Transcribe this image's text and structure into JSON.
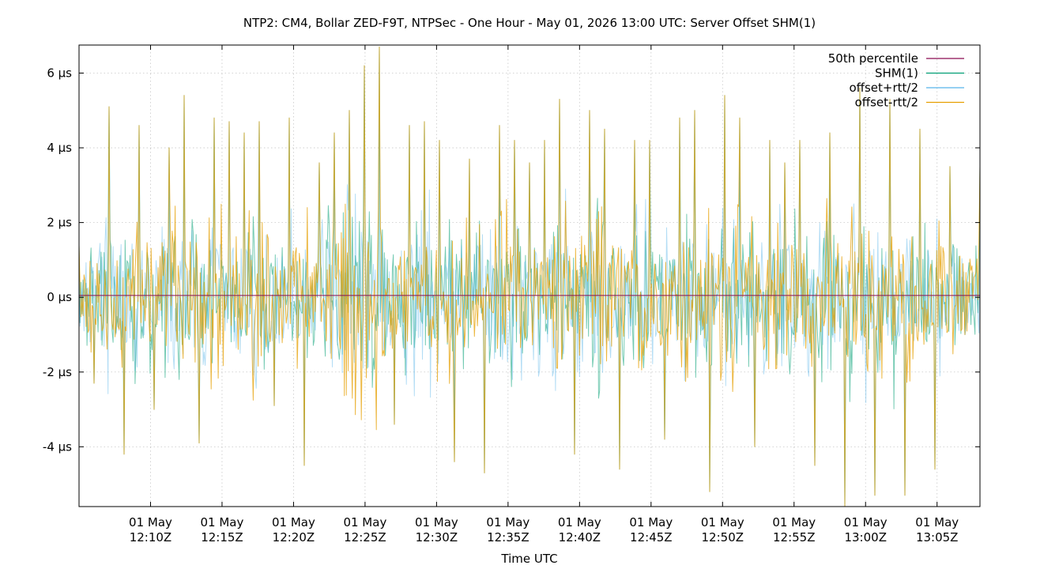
{
  "chart_data": {
    "type": "line",
    "title": "NTP2: CM4, Bollar ZED-F9T, NTPSec - One Hour - May 01, 2026 13:00 UTC: Server Offset SHM(1)",
    "xlabel": "Time UTC",
    "ylabel": "",
    "y_unit": "µs",
    "ylim": [
      -5.6,
      6.75
    ],
    "xlim": [
      "12:05Z",
      "13:08Z"
    ],
    "grid": true,
    "legend_position": "top-right",
    "y_ticks": [
      {
        "value": 6,
        "label": "6 µs"
      },
      {
        "value": 4,
        "label": "4 µs"
      },
      {
        "value": 2,
        "label": "2 µs"
      },
      {
        "value": 0,
        "label": "0 µs"
      },
      {
        "value": -2,
        "label": "-2 µs"
      },
      {
        "value": -4,
        "label": "-4 µs"
      }
    ],
    "x_ticks": [
      {
        "line1": "01 May",
        "line2": "12:10Z"
      },
      {
        "line1": "01 May",
        "line2": "12:15Z"
      },
      {
        "line1": "01 May",
        "line2": "12:20Z"
      },
      {
        "line1": "01 May",
        "line2": "12:25Z"
      },
      {
        "line1": "01 May",
        "line2": "12:30Z"
      },
      {
        "line1": "01 May",
        "line2": "12:35Z"
      },
      {
        "line1": "01 May",
        "line2": "12:40Z"
      },
      {
        "line1": "01 May",
        "line2": "12:45Z"
      },
      {
        "line1": "01 May",
        "line2": "12:50Z"
      },
      {
        "line1": "01 May",
        "line2": "12:55Z"
      },
      {
        "line1": "01 May",
        "line2": "13:00Z"
      },
      {
        "line1": "01 May",
        "line2": "13:05Z"
      }
    ],
    "series": [
      {
        "name": "50th percentile",
        "color": "#8b0a50",
        "constant": 0.05
      },
      {
        "name": "SHM(1)",
        "color": "#009e73",
        "points": [
          [
            "12:05Z",
            1.4
          ],
          [
            "12:06Z",
            -2.3
          ],
          [
            "12:07Z",
            5.1
          ],
          [
            "12:08Z",
            -4.2
          ],
          [
            "12:09Z",
            4.6
          ],
          [
            "12:10Z",
            -3.0
          ],
          [
            "12:11Z",
            4.0
          ],
          [
            "12:12Z",
            5.4
          ],
          [
            "12:13Z",
            -3.9
          ],
          [
            "12:14Z",
            4.8
          ],
          [
            "12:15Z",
            4.7
          ],
          [
            "12:16Z",
            -3.8
          ],
          [
            "12:17Z",
            4.4
          ],
          [
            "12:18Z",
            4.7
          ],
          [
            "12:19Z",
            -2.9
          ],
          [
            "12:20Z",
            4.8
          ],
          [
            "12:21Z",
            -4.5
          ],
          [
            "12:22Z",
            3.6
          ],
          [
            "12:23Z",
            4.4
          ],
          [
            "12:24Z",
            5.0
          ],
          [
            "12:25Z",
            6.2
          ],
          [
            "12:26Z",
            6.7
          ],
          [
            "12:27Z",
            -3.4
          ],
          [
            "12:28Z",
            4.6
          ],
          [
            "12:29Z",
            4.7
          ],
          [
            "12:30Z",
            4.2
          ],
          [
            "12:31Z",
            -4.4
          ],
          [
            "12:32Z",
            3.7
          ],
          [
            "12:33Z",
            -4.7
          ],
          [
            "12:34Z",
            4.6
          ],
          [
            "12:35Z",
            4.2
          ],
          [
            "12:36Z",
            3.6
          ],
          [
            "12:37Z",
            -4.6
          ],
          [
            "12:38Z",
            4.2
          ],
          [
            "12:39Z",
            5.3
          ],
          [
            "12:40Z",
            -4.2
          ],
          [
            "12:41Z",
            5.0
          ],
          [
            "12:42Z",
            4.5
          ],
          [
            "12:43Z",
            -4.6
          ],
          [
            "12:44Z",
            4.2
          ],
          [
            "12:45Z",
            4.2
          ],
          [
            "12:46Z",
            -3.8
          ],
          [
            "12:47Z",
            4.8
          ],
          [
            "12:48Z",
            5.0
          ],
          [
            "12:49Z",
            -5.2
          ],
          [
            "12:50Z",
            5.4
          ],
          [
            "12:51Z",
            4.8
          ],
          [
            "12:52Z",
            -4.0
          ],
          [
            "12:53Z",
            4.2
          ],
          [
            "12:54Z",
            3.6
          ],
          [
            "12:55Z",
            4.2
          ],
          [
            "12:56Z",
            -4.5
          ],
          [
            "12:57Z",
            4.4
          ],
          [
            "12:58Z",
            4.0
          ],
          [
            "12:59Z",
            -5.8
          ],
          [
            "13:00Z",
            5.6
          ],
          [
            "13:01Z",
            -5.3
          ],
          [
            "13:02Z",
            5.3
          ],
          [
            "13:03Z",
            -5.3
          ],
          [
            "13:04Z",
            4.5
          ],
          [
            "13:05Z",
            -4.6
          ],
          [
            "13:06Z",
            3.5
          ],
          [
            "13:07Z",
            -1.0
          ],
          [
            "13:08Z",
            3.5
          ]
        ]
      },
      {
        "name": "offset+rtt/2",
        "color": "#56b4e9",
        "same_as": "SHM(1)"
      },
      {
        "name": "offset-rtt/2",
        "color": "#e69f00",
        "same_as": "SHM(1)"
      }
    ]
  }
}
